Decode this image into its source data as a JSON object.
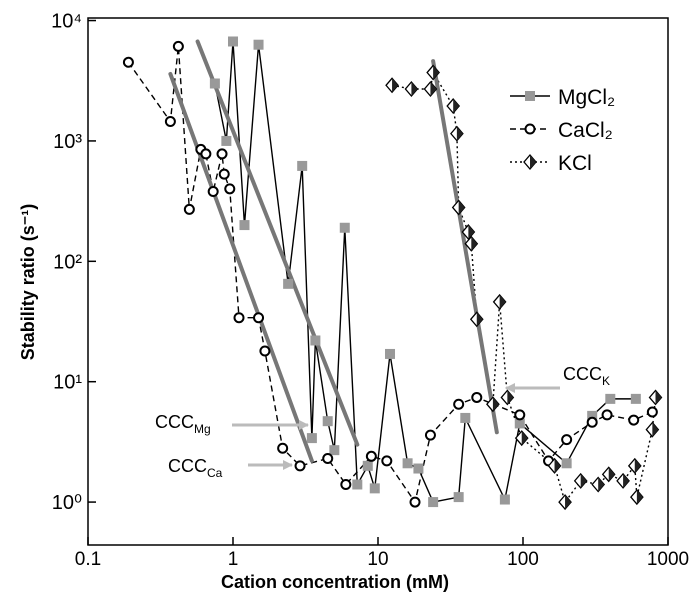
{
  "chart_data": {
    "type": "line",
    "x_label": "Cation concentration (mM)",
    "y_label": "Stability ratio (s⁻¹)",
    "xscale": "log",
    "yscale": "log",
    "xlim": [
      0.1,
      1000
    ],
    "ylim": [
      0.44,
      10500
    ],
    "xticks": [
      0.1,
      1,
      10,
      100,
      1000
    ],
    "yticks": [
      {
        "value": 1,
        "label": "10⁰"
      },
      {
        "value": 10,
        "label": "10¹"
      },
      {
        "value": 100,
        "label": "10²"
      },
      {
        "value": 1000,
        "label": "10³"
      },
      {
        "value": 10000,
        "label": "10⁴"
      }
    ],
    "legend": "top-right",
    "series": [
      {
        "name": "MgCl₂",
        "color": "#999999",
        "marker": "square",
        "style": "solid",
        "x": [
          0.75,
          0.9,
          1.0,
          1.2,
          1.5,
          2.4,
          3.0,
          3.5,
          3.7,
          4.5,
          5.0,
          5.9,
          7.2,
          8.5,
          9.5,
          12.1,
          16,
          19,
          24,
          36,
          40,
          75,
          95,
          200,
          300,
          400,
          600
        ],
        "values": [
          3000,
          1000,
          6700,
          200,
          6300,
          65,
          620,
          3.4,
          22,
          4.7,
          2.7,
          190,
          1.4,
          2.0,
          1.3,
          17,
          2.1,
          1.9,
          1.0,
          1.1,
          5.0,
          1.05,
          4.5,
          2.1,
          5.2,
          7.2,
          7.2
        ]
      },
      {
        "name": "CaCl₂",
        "color": "#ffffff",
        "marker": "circle",
        "style": "dashed",
        "x": [
          0.19,
          0.37,
          0.42,
          0.5,
          0.6,
          0.65,
          0.73,
          0.84,
          0.87,
          0.95,
          1.1,
          1.5,
          1.66,
          2.2,
          2.9,
          4.5,
          6.0,
          9.0,
          11.5,
          18,
          23,
          36,
          48,
          95,
          150,
          200,
          300,
          380,
          580,
          780
        ],
        "values": [
          4500,
          1450,
          6100,
          270,
          850,
          780,
          380,
          780,
          530,
          400,
          34,
          34,
          18,
          2.8,
          2.0,
          2.3,
          1.4,
          2.4,
          2.2,
          1.0,
          3.6,
          6.5,
          7.4,
          5.3,
          2.2,
          3.3,
          4.6,
          5.3,
          4.8,
          5.6
        ]
      },
      {
        "name": "KCl",
        "color": "#222222",
        "marker": "half-diamond",
        "style": "dotted",
        "x": [
          12.5,
          17,
          23,
          24,
          33,
          35,
          36,
          42,
          44,
          48,
          62,
          69,
          78,
          98,
          165,
          195,
          250,
          330,
          390,
          490,
          590,
          610,
          780,
          820
        ],
        "values": [
          2900,
          2700,
          2700,
          3700,
          1950,
          1150,
          280,
          175,
          140,
          33,
          6.5,
          46,
          7.4,
          3.4,
          2.0,
          1.0,
          1.5,
          1.4,
          1.7,
          1.5,
          2.0,
          1.1,
          4.0,
          7.4
        ]
      }
    ],
    "fit_lines": [
      {
        "color": "#777777",
        "x": [
          0.57,
          7.2
        ],
        "values": [
          6700,
          3.0
        ]
      },
      {
        "color": "#777777",
        "x": [
          0.37,
          3.5
        ],
        "values": [
          3600,
          2.2
        ]
      },
      {
        "color": "#777777",
        "x": [
          24,
          66
        ],
        "values": [
          4600,
          3.8
        ]
      }
    ],
    "annotations": [
      {
        "text": "CCC",
        "sub": "Mg"
      },
      {
        "text": "CCC",
        "sub": "Ca"
      },
      {
        "text": "CCC",
        "sub": "K"
      }
    ]
  }
}
